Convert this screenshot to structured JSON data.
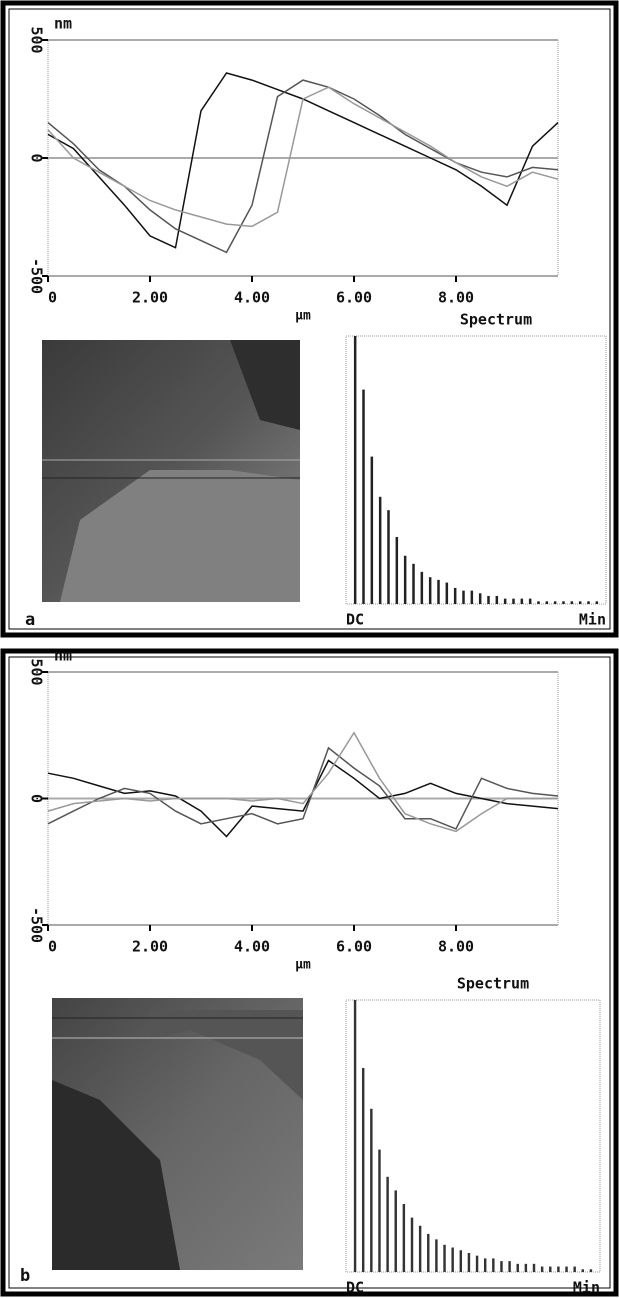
{
  "chart_data": [
    {
      "type": "line",
      "panel_label": "a",
      "ylabel": "nm",
      "xlabel": "μm",
      "x": [
        0,
        0.5,
        1,
        1.5,
        2,
        2.5,
        3,
        3.5,
        4,
        4.5,
        5,
        5.5,
        6,
        6.5,
        7,
        7.5,
        8,
        8.5,
        9,
        9.5,
        10
      ],
      "series": [
        {
          "color": "#111111",
          "values": [
            100,
            40,
            -80,
            -200,
            -330,
            -380,
            200,
            360,
            330,
            290,
            250,
            200,
            150,
            100,
            50,
            0,
            -50,
            -120,
            -200,
            50,
            150
          ]
        },
        {
          "color": "#555555",
          "values": [
            150,
            60,
            -50,
            -120,
            -220,
            -300,
            -350,
            -400,
            -200,
            260,
            330,
            300,
            250,
            180,
            100,
            40,
            -20,
            -60,
            -80,
            -40,
            -50
          ]
        },
        {
          "color": "#999999",
          "values": [
            120,
            0,
            -60,
            -120,
            -180,
            -220,
            -250,
            -280,
            -290,
            -230,
            250,
            300,
            230,
            170,
            110,
            50,
            -20,
            -80,
            -120,
            -60,
            -90
          ]
        }
      ],
      "xlim": [
        0,
        10
      ],
      "ylim": [
        -500,
        500
      ],
      "xticks": [
        0,
        {
          "value": 2,
          "label": "2.00"
        },
        {
          "value": 4,
          "label": "4.00"
        },
        {
          "value": 6,
          "label": "6.00"
        },
        {
          "value": 8,
          "label": "8.00"
        }
      ],
      "yticks": [
        500,
        0,
        -500
      ],
      "grid": true
    },
    {
      "type": "bar",
      "title": "Spectrum",
      "color": "#222222",
      "categories": [
        "DC",
        null,
        null,
        null,
        null,
        null,
        null,
        null,
        null,
        null,
        null,
        null,
        null,
        null,
        null,
        null,
        null,
        null,
        null,
        null,
        null,
        null,
        null,
        null,
        null,
        null,
        null,
        null,
        null,
        "Min"
      ],
      "values": [
        100,
        80,
        55,
        40,
        35,
        25,
        18,
        15,
        12,
        10,
        9,
        8,
        6,
        5,
        5,
        4,
        3,
        3,
        2,
        2,
        2,
        2,
        1,
        1,
        1,
        1,
        1,
        1,
        1,
        1
      ],
      "ylim": [
        0,
        100
      ]
    },
    {
      "type": "line",
      "panel_label": "b",
      "ylabel": "nm",
      "xlabel": "μm",
      "x": [
        0,
        0.5,
        1,
        1.5,
        2,
        2.5,
        3,
        3.5,
        4,
        4.5,
        5,
        5.5,
        6,
        6.5,
        7,
        7.5,
        8,
        8.5,
        9,
        9.5,
        10
      ],
      "series": [
        {
          "color": "#111111",
          "values": [
            100,
            80,
            50,
            20,
            30,
            10,
            -50,
            -150,
            -30,
            -40,
            -50,
            150,
            80,
            0,
            20,
            60,
            20,
            0,
            -20,
            -30,
            -40
          ]
        },
        {
          "color": "#555555",
          "values": [
            -100,
            -50,
            0,
            40,
            20,
            -50,
            -100,
            -80,
            -60,
            -100,
            -80,
            200,
            120,
            50,
            -80,
            -80,
            -120,
            80,
            40,
            20,
            10
          ]
        },
        {
          "color": "#999999",
          "values": [
            -50,
            -20,
            -10,
            0,
            -10,
            0,
            0,
            0,
            -10,
            0,
            -20,
            100,
            260,
            80,
            -60,
            -100,
            -130,
            -60,
            0,
            0,
            0
          ]
        }
      ],
      "xlim": [
        0,
        10
      ],
      "ylim": [
        -500,
        500
      ],
      "xticks": [
        0,
        {
          "value": 2,
          "label": "2.00"
        },
        {
          "value": 4,
          "label": "4.00"
        },
        {
          "value": 6,
          "label": "6.00"
        },
        {
          "value": 8,
          "label": "8.00"
        }
      ],
      "yticks": [
        500,
        0,
        -500
      ],
      "grid": true
    },
    {
      "type": "bar",
      "title": "Spectrum",
      "color": "#333333",
      "categories": [
        "DC",
        null,
        null,
        null,
        null,
        null,
        null,
        null,
        null,
        null,
        null,
        null,
        null,
        null,
        null,
        null,
        null,
        null,
        null,
        null,
        null,
        null,
        null,
        null,
        null,
        null,
        null,
        null,
        null,
        "Min"
      ],
      "values": [
        100,
        75,
        60,
        45,
        35,
        30,
        25,
        20,
        17,
        14,
        12,
        10,
        9,
        8,
        7,
        6,
        5,
        5,
        4,
        4,
        3,
        3,
        3,
        2,
        2,
        2,
        2,
        2,
        1,
        1
      ],
      "ylim": [
        0,
        100
      ]
    }
  ]
}
